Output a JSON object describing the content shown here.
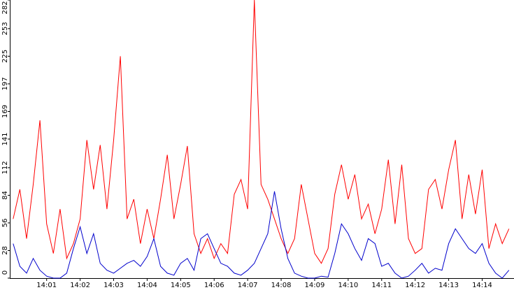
{
  "chart_data": {
    "type": "line",
    "x": [
      0,
      0.2,
      0.4,
      0.6,
      0.8,
      1,
      1.2,
      1.4,
      1.6,
      1.8,
      2,
      2.2,
      2.4,
      2.6,
      2.8,
      3,
      3.2,
      3.4,
      3.6,
      3.8,
      4,
      4.2,
      4.4,
      4.6,
      4.8,
      5,
      5.2,
      5.4,
      5.6,
      5.8,
      6,
      6.2,
      6.4,
      6.6,
      6.8,
      7,
      7.2,
      7.4,
      7.6,
      7.8,
      8,
      8.2,
      8.4,
      8.6,
      8.8,
      9,
      9.2,
      9.4,
      9.6,
      9.8,
      10,
      10.2,
      10.4,
      10.6,
      10.8,
      11,
      11.2,
      11.4,
      11.6,
      11.8,
      12,
      12.2,
      12.4,
      12.6,
      12.8,
      13,
      13.2,
      13.4,
      13.6,
      13.8,
      14,
      14.2,
      14.4,
      14.6,
      14.8
    ],
    "series": [
      {
        "color": "#ff0000",
        "values": [
          60,
          90,
          40,
          95,
          160,
          55,
          25,
          70,
          20,
          35,
          60,
          140,
          90,
          135,
          70,
          140,
          225,
          60,
          80,
          35,
          70,
          40,
          80,
          125,
          60,
          95,
          134,
          45,
          25,
          40,
          20,
          35,
          25,
          85,
          100,
          70,
          282,
          95,
          80,
          60,
          40,
          25,
          40,
          95,
          60,
          25,
          15,
          30,
          85,
          115,
          80,
          105,
          60,
          75,
          45,
          70,
          120,
          55,
          115,
          40,
          25,
          30,
          90,
          100,
          70,
          110,
          140,
          60,
          105,
          65,
          110,
          30,
          55,
          35,
          50
        ]
      },
      {
        "color": "#0000cc",
        "values": [
          35,
          12,
          5,
          20,
          8,
          2,
          0,
          0,
          5,
          30,
          52,
          25,
          45,
          15,
          8,
          5,
          10,
          15,
          18,
          12,
          22,
          40,
          12,
          5,
          3,
          15,
          20,
          8,
          40,
          45,
          30,
          15,
          12,
          5,
          3,
          8,
          15,
          30,
          45,
          88,
          50,
          20,
          5,
          2,
          0,
          0,
          2,
          1,
          25,
          55,
          45,
          30,
          18,
          40,
          35,
          12,
          15,
          5,
          0,
          2,
          8,
          15,
          5,
          10,
          8,
          35,
          50,
          40,
          30,
          25,
          35,
          15,
          5,
          0,
          8
        ]
      }
    ],
    "xlim": [
      -0.1,
      14.95
    ],
    "xticks": [
      {
        "value": 1,
        "label": "14:01"
      },
      {
        "value": 2,
        "label": "14:02"
      },
      {
        "value": 3,
        "label": "14:03"
      },
      {
        "value": 4,
        "label": "14:04"
      },
      {
        "value": 5,
        "label": "14:05"
      },
      {
        "value": 6,
        "label": "14:06"
      },
      {
        "value": 7,
        "label": "14:07"
      },
      {
        "value": 8,
        "label": "14:08"
      },
      {
        "value": 9,
        "label": "14:09"
      },
      {
        "value": 10,
        "label": "14:10"
      },
      {
        "value": 11,
        "label": "14:11"
      },
      {
        "value": 12,
        "label": "14:12"
      },
      {
        "value": 13,
        "label": "14:13"
      },
      {
        "value": 14,
        "label": "14:14"
      }
    ],
    "ylim": [
      0,
      282
    ],
    "yticks": [
      0,
      28,
      56,
      84,
      112,
      141,
      169,
      197,
      225,
      253,
      282
    ],
    "grid": false
  }
}
